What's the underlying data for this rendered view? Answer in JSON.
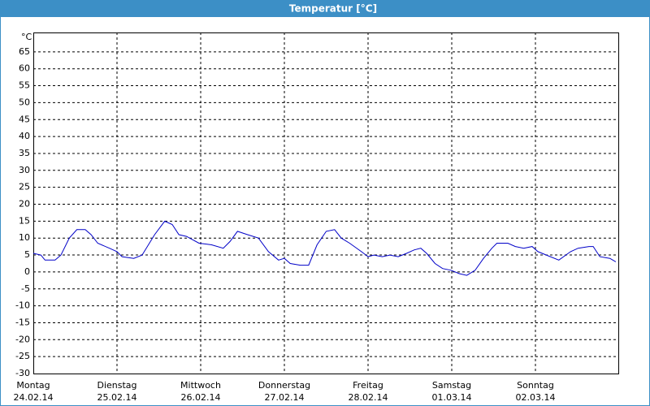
{
  "chart_data": {
    "type": "line",
    "title": "Temperatur [°C]",
    "y_unit": "°C",
    "xlim": [
      0,
      7
    ],
    "ylim": [
      -30,
      70
    ],
    "xticks": [
      {
        "value": 0,
        "label": "Montag",
        "date": "24.02.14"
      },
      {
        "value": 1,
        "label": "Dienstag",
        "date": "25.02.14"
      },
      {
        "value": 2,
        "label": "Mittwoch",
        "date": "26.02.14"
      },
      {
        "value": 3,
        "label": "Donnerstag",
        "date": "27.02.14"
      },
      {
        "value": 4,
        "label": "Freitag",
        "date": "28.02.14"
      },
      {
        "value": 5,
        "label": "Samstag",
        "date": "01.03.14"
      },
      {
        "value": 6,
        "label": "Sonntag",
        "date": "02.03.14"
      }
    ],
    "yticks": [
      -30,
      -25,
      -20,
      -15,
      -10,
      -5,
      0,
      5,
      10,
      15,
      20,
      25,
      30,
      35,
      40,
      45,
      50,
      55,
      60,
      65
    ],
    "grid": true,
    "color": "#0000c8",
    "x": [
      0,
      0.09,
      0.14,
      0.26,
      0.33,
      0.43,
      0.52,
      0.62,
      0.69,
      0.77,
      0.91,
      1.0,
      1.06,
      1.2,
      1.3,
      1.45,
      1.57,
      1.66,
      1.74,
      1.83,
      1.98,
      2.13,
      2.27,
      2.35,
      2.44,
      2.56,
      2.69,
      2.81,
      2.93,
      3.0,
      3.07,
      3.19,
      3.29,
      3.39,
      3.5,
      3.6,
      3.68,
      3.78,
      3.92,
      4.0,
      4.07,
      4.17,
      4.26,
      4.36,
      4.46,
      4.55,
      4.63,
      4.7,
      4.8,
      4.89,
      4.99,
      5.09,
      5.18,
      5.28,
      5.38,
      5.48,
      5.54,
      5.67,
      5.76,
      5.86,
      5.96,
      6.03,
      6.13,
      6.28,
      6.42,
      6.51,
      6.64,
      6.69,
      6.77,
      6.89,
      6.96
    ],
    "values": [
      5.5,
      5,
      3.5,
      3.5,
      5,
      10,
      12.5,
      12.5,
      11,
      8.5,
      7,
      6,
      4.5,
      4,
      5,
      11,
      15,
      14,
      11,
      10.5,
      8.5,
      8,
      7,
      9,
      12,
      11,
      10,
      6,
      3.5,
      4,
      2.5,
      2,
      2,
      8,
      12,
      12.5,
      10,
      8.5,
      6,
      4.5,
      5,
      4.5,
      5,
      4.5,
      5.5,
      6.5,
      7,
      5.5,
      2.5,
      1,
      0.5,
      -0.5,
      -1,
      0.5,
      4,
      7,
      8.5,
      8.5,
      7.5,
      7,
      7.5,
      6,
      5,
      3.5,
      6,
      7,
      7.5,
      7.5,
      4.5,
      4,
      3
    ]
  }
}
